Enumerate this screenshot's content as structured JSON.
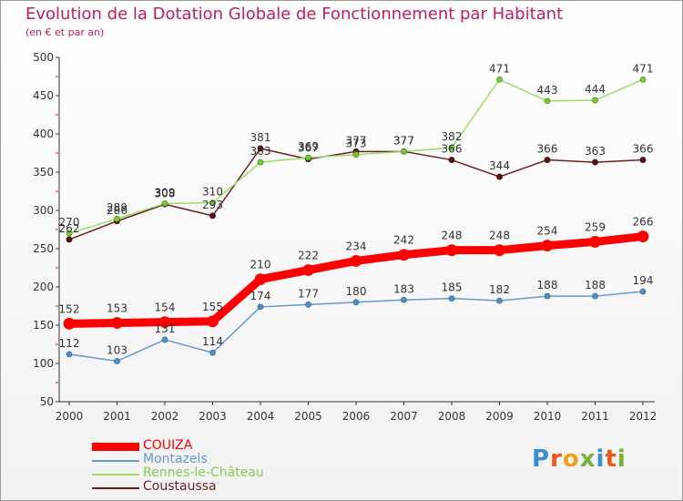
{
  "header": {
    "title": "Evolution de la Dotation Globale de Fonctionnement par Habitant",
    "subtitle": "(en € et par an)"
  },
  "logo": {
    "text": "Proxiti"
  },
  "chart_data": {
    "type": "line",
    "title": "Evolution de la Dotation Globale de Fonctionnement par Habitant",
    "subtitle": "(en € et par an)",
    "xlabel": "",
    "ylabel": "",
    "x": [
      "2000",
      "2001",
      "2002",
      "2003",
      "2004",
      "2005",
      "2006",
      "2007",
      "2008",
      "2009",
      "2010",
      "2011",
      "2012"
    ],
    "ylim": [
      50,
      500
    ],
    "yticks": [
      50,
      100,
      150,
      200,
      250,
      300,
      350,
      400,
      450,
      500
    ],
    "grid": false,
    "legend_position": "bottom-left",
    "series": [
      {
        "name": "COUIZA",
        "color": "#ff0000",
        "values": [
          152,
          153,
          154,
          155,
          210,
          222,
          234,
          242,
          248,
          248,
          254,
          259,
          266
        ]
      },
      {
        "name": "Montazels",
        "color": "#6699cc",
        "values": [
          112,
          103,
          131,
          114,
          174,
          177,
          180,
          183,
          185,
          182,
          188,
          188,
          194
        ]
      },
      {
        "name": "Rennes-le-Château",
        "color": "#99dd66",
        "values": [
          270,
          289,
          309,
          310,
          363,
          369,
          373,
          377,
          382,
          471,
          443,
          444,
          471
        ]
      },
      {
        "name": "Coustaussa",
        "color": "#6b1f1f",
        "values": [
          262,
          286,
          308,
          293,
          381,
          367,
          377,
          377,
          366,
          344,
          366,
          363,
          366
        ]
      }
    ]
  }
}
